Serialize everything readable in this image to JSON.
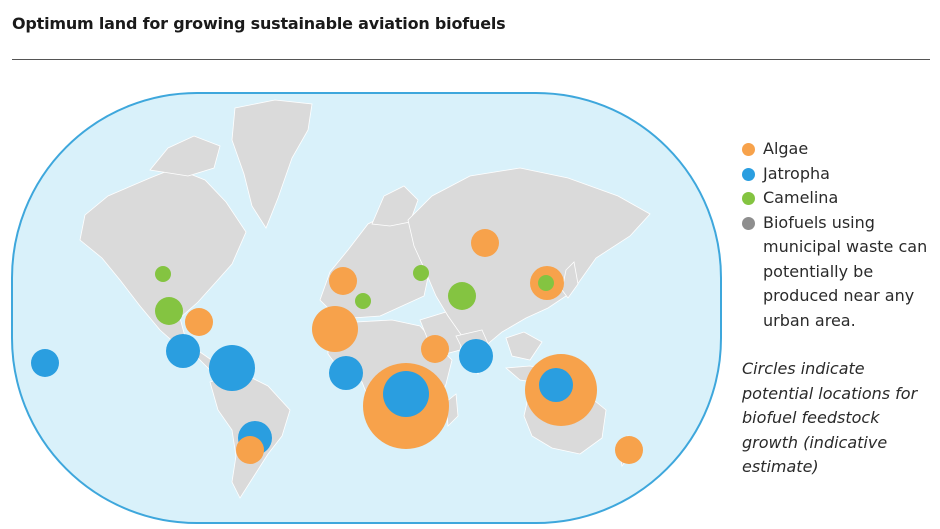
{
  "title": "Optimum land for growing sustainable aviation biofuels",
  "colors": {
    "ocean": "#d9f1fa",
    "ocean_border": "#3ea7dc",
    "land": "#dadada",
    "land_stroke": "#ffffff",
    "algae": "#f7a24b",
    "jatropha": "#2a9ee0",
    "camelina": "#84c441",
    "municipal": "#8e8e8e"
  },
  "legend": [
    {
      "key": "algae",
      "label": "Algae",
      "icon": "orange-dot"
    },
    {
      "key": "jatropha",
      "label": "Jatropha",
      "icon": "blue-dot"
    },
    {
      "key": "camelina",
      "label": "Camelina",
      "icon": "green-dot"
    },
    {
      "key": "municipal",
      "label": "Biofuels using municipal waste can potentially be produced near any urban area.",
      "icon": "grey-dot"
    }
  ],
  "note": "Circles indicate potential locations for biofuel feedstock growth (indicative estimate)",
  "locations": [
    {
      "name": "Pacific Ocean (Hawaii)",
      "type": "jatropha",
      "size": 2
    },
    {
      "name": "Central Canada",
      "type": "camelina",
      "size": 1
    },
    {
      "name": "Western USA",
      "type": "camelina",
      "size": 2
    },
    {
      "name": "South-eastern USA",
      "type": "algae",
      "size": 2
    },
    {
      "name": "Mexico",
      "type": "jatropha",
      "size": 3
    },
    {
      "name": "Northern South America",
      "type": "jatropha",
      "size": 4
    },
    {
      "name": "Southern South America",
      "type": "algae",
      "size": 2
    },
    {
      "name": "Southern South America",
      "type": "jatropha",
      "size": 3
    },
    {
      "name": "Iberia",
      "type": "algae",
      "size": 2
    },
    {
      "name": "Western Europe",
      "type": "camelina",
      "size": 1
    },
    {
      "name": "Eastern Europe",
      "type": "camelina",
      "size": 1
    },
    {
      "name": "Black Sea region",
      "type": "camelina",
      "size": 2
    },
    {
      "name": "North Africa",
      "type": "algae",
      "size": 4
    },
    {
      "name": "Middle East",
      "type": "algae",
      "size": 2
    },
    {
      "name": "West Africa",
      "type": "jatropha",
      "size": 3
    },
    {
      "name": "Southern Africa",
      "type": "algae",
      "size": 6
    },
    {
      "name": "Southern Africa",
      "type": "jatropha",
      "size": 4
    },
    {
      "name": "India",
      "type": "jatropha",
      "size": 3
    },
    {
      "name": "Russia",
      "type": "algae",
      "size": 2
    },
    {
      "name": "China",
      "type": "algae",
      "size": 3
    },
    {
      "name": "China",
      "type": "camelina",
      "size": 1
    },
    {
      "name": "Australia",
      "type": "algae",
      "size": 5
    },
    {
      "name": "Australia",
      "type": "jatropha",
      "size": 3
    },
    {
      "name": "New Zealand",
      "type": "algae",
      "size": 2
    }
  ]
}
